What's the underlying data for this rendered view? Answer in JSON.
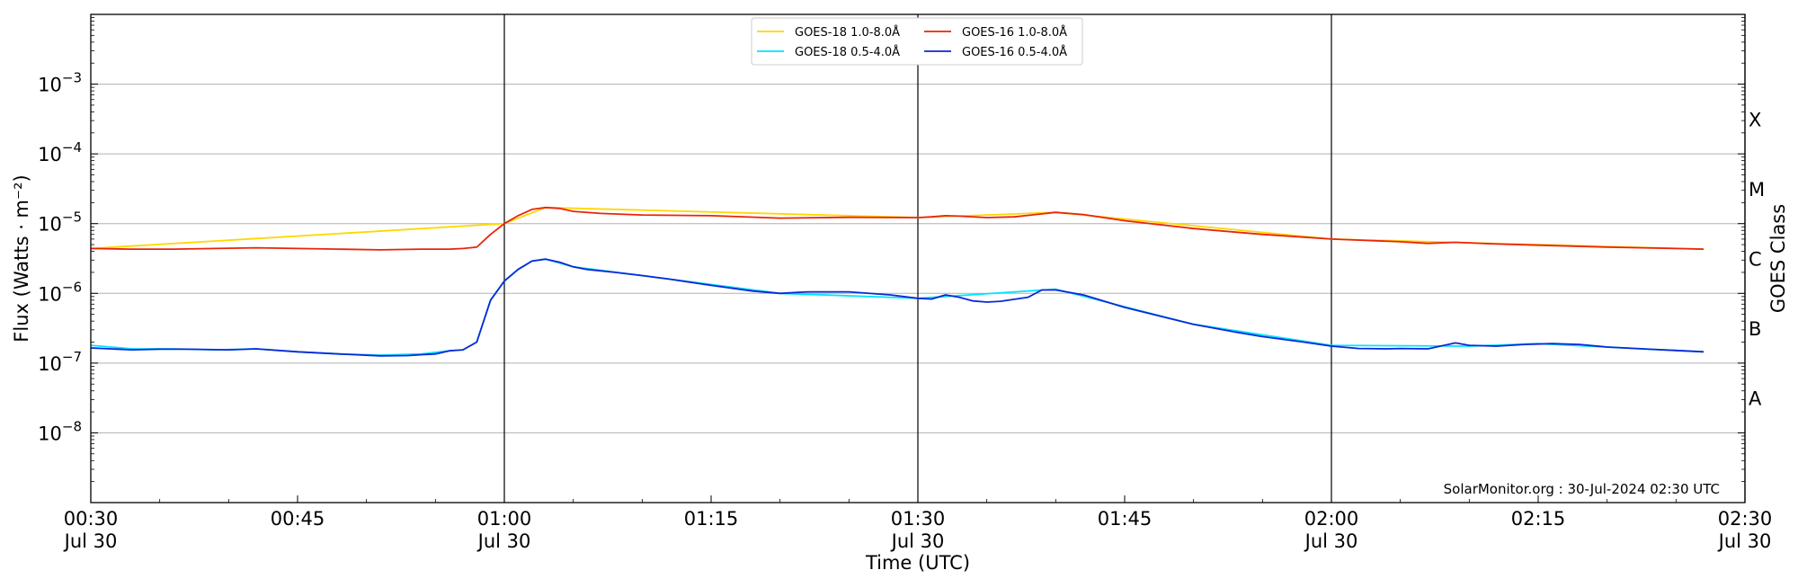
{
  "chart_data": {
    "type": "line",
    "xlabel": "Time (UTC)",
    "ylabel": "Flux (Watts · m⁻²)",
    "right_label": "GOES Class",
    "y_scale": "log",
    "ylim": [
      1e-09,
      0.01
    ],
    "xlim": [
      "2024-07-30 00:30",
      "2024-07-30 02:30"
    ],
    "grid": "horizontal at decades",
    "legend_position": "top-center",
    "credit": "SolarMonitor.org : 30-Jul-2024 02:30 UTC",
    "y_ticks": [
      {
        "value": 0.001,
        "base": "10",
        "exp": "−3"
      },
      {
        "value": 0.0001,
        "base": "10",
        "exp": "−4"
      },
      {
        "value": 1e-05,
        "base": "10",
        "exp": "−5"
      },
      {
        "value": 1e-06,
        "base": "10",
        "exp": "−6"
      },
      {
        "value": 1e-07,
        "base": "10",
        "exp": "−7"
      },
      {
        "value": 1e-08,
        "base": "10",
        "exp": "−8"
      }
    ],
    "x_ticks": [
      {
        "time": "00:30",
        "line1": "00:30",
        "line2": "Jul 30"
      },
      {
        "time": "00:45",
        "line1": "00:45",
        "line2": ""
      },
      {
        "time": "01:00",
        "line1": "01:00",
        "line2": "Jul 30"
      },
      {
        "time": "01:15",
        "line1": "01:15",
        "line2": ""
      },
      {
        "time": "01:30",
        "line1": "01:30",
        "line2": "Jul 30"
      },
      {
        "time": "01:45",
        "line1": "01:45",
        "line2": ""
      },
      {
        "time": "02:00",
        "line1": "02:00",
        "line2": "Jul 30"
      },
      {
        "time": "02:15",
        "line1": "02:15",
        "line2": ""
      },
      {
        "time": "02:30",
        "line1": "02:30",
        "line2": "Jul 30"
      }
    ],
    "vlines": [
      "01:00",
      "01:30",
      "02:00",
      "02:30"
    ],
    "goes_classes": [
      {
        "label": "X",
        "value": 0.000316
      },
      {
        "label": "M",
        "value": 3.16e-05
      },
      {
        "label": "C",
        "value": 3.16e-06
      },
      {
        "label": "B",
        "value": 3.16e-07
      },
      {
        "label": "A",
        "value": 3.16e-08
      }
    ],
    "series": [
      {
        "name": "GOES-18 1.0-8.0Å",
        "color": "#ffd700",
        "x": [
          "00:30",
          "01:00",
          "01:03",
          "01:30",
          "01:40",
          "02:00",
          "02:27"
        ],
        "y": [
          4.4e-06,
          1e-05,
          1.7e-05,
          1.22e-05,
          1.45e-05,
          6e-06,
          4.3e-06
        ]
      },
      {
        "name": "GOES-16 1.0-8.0Å",
        "color": "#e8250a",
        "x": [
          "00:30",
          "00:33",
          "00:36",
          "00:39",
          "00:42",
          "00:45",
          "00:48",
          "00:51",
          "00:54",
          "00:56",
          "00:57",
          "00:58",
          "00:59",
          "01:00",
          "01:01",
          "01:02",
          "01:03",
          "01:04",
          "01:05",
          "01:07",
          "01:10",
          "01:15",
          "01:20",
          "01:25",
          "01:30",
          "01:31",
          "01:32",
          "01:33",
          "01:35",
          "01:37",
          "01:39",
          "01:40",
          "01:42",
          "01:45",
          "01:50",
          "01:55",
          "02:00",
          "02:05",
          "02:07",
          "02:09",
          "02:12",
          "02:15",
          "02:20",
          "02:25",
          "02:27"
        ],
        "y": [
          4.4e-06,
          4.3e-06,
          4.3e-06,
          4.4e-06,
          4.5e-06,
          4.4e-06,
          4.3e-06,
          4.2e-06,
          4.3e-06,
          4.3e-06,
          4.4e-06,
          4.6e-06,
          7e-06,
          1e-05,
          1.3e-05,
          1.6e-05,
          1.7e-05,
          1.65e-05,
          1.5e-05,
          1.4e-05,
          1.33e-05,
          1.3e-05,
          1.2e-05,
          1.23e-05,
          1.22e-05,
          1.25e-05,
          1.3e-05,
          1.28e-05,
          1.22e-05,
          1.25e-05,
          1.38e-05,
          1.45e-05,
          1.35e-05,
          1.1e-05,
          8.5e-06,
          7e-06,
          6e-06,
          5.5e-06,
          5.2e-06,
          5.4e-06,
          5.1e-06,
          4.9e-06,
          4.6e-06,
          4.4e-06,
          4.3e-06
        ]
      },
      {
        "name": "GOES-18 0.5-4.0Å",
        "color": "#00e5ff",
        "x": [
          "00:30",
          "00:33",
          "00:36",
          "00:39",
          "00:42",
          "00:45",
          "00:48",
          "00:51",
          "00:54",
          "00:56",
          "00:57",
          "00:58",
          "00:59",
          "01:00",
          "01:01",
          "01:02",
          "01:03",
          "01:05",
          "01:10",
          "01:20",
          "01:30",
          "01:40",
          "01:50",
          "02:00",
          "02:10",
          "02:15",
          "02:27"
        ],
        "y": [
          1.8e-07,
          1.6e-07,
          1.6e-07,
          1.55e-07,
          1.6e-07,
          1.45e-07,
          1.35e-07,
          1.3e-07,
          1.35e-07,
          1.5e-07,
          1.55e-07,
          2e-07,
          8e-07,
          1.5e-06,
          2.2e-06,
          2.9e-06,
          3.1e-06,
          2.4e-06,
          1.8e-06,
          1e-06,
          8.5e-07,
          1.15e-06,
          3.6e-07,
          1.8e-07,
          1.75e-07,
          1.9e-07,
          1.45e-07
        ]
      },
      {
        "name": "GOES-16 0.5-4.0Å",
        "color": "#0a28d8",
        "x": [
          "00:30",
          "00:33",
          "00:35",
          "00:37",
          "00:40",
          "00:42",
          "00:45",
          "00:48",
          "00:51",
          "00:53",
          "00:54",
          "00:55",
          "00:56",
          "00:57",
          "00:58",
          "00:59",
          "01:00",
          "01:01",
          "01:02",
          "01:03",
          "01:04",
          "01:05",
          "01:06",
          "01:08",
          "01:10",
          "01:12",
          "01:15",
          "01:18",
          "01:20",
          "01:22",
          "01:25",
          "01:28",
          "01:30",
          "01:31",
          "01:32",
          "01:33",
          "01:34",
          "01:35",
          "01:36",
          "01:38",
          "01:39",
          "01:40",
          "01:42",
          "01:45",
          "01:48",
          "01:50",
          "01:53",
          "01:55",
          "01:58",
          "02:00",
          "02:02",
          "02:04",
          "02:05",
          "02:07",
          "02:09",
          "02:10",
          "02:12",
          "02:14",
          "02:16",
          "02:18",
          "02:20",
          "02:23",
          "02:25",
          "02:27"
        ],
        "y": [
          1.65e-07,
          1.55e-07,
          1.58e-07,
          1.58e-07,
          1.55e-07,
          1.6e-07,
          1.45e-07,
          1.35e-07,
          1.27e-07,
          1.28e-07,
          1.32e-07,
          1.35e-07,
          1.5e-07,
          1.55e-07,
          2e-07,
          8e-07,
          1.5e-06,
          2.2e-06,
          2.9e-06,
          3.1e-06,
          2.8e-06,
          2.4e-06,
          2.2e-06,
          2e-06,
          1.8e-06,
          1.6e-06,
          1.3e-06,
          1.08e-06,
          1e-06,
          1.05e-06,
          1.05e-06,
          9.5e-07,
          8.5e-07,
          8.3e-07,
          9.5e-07,
          8.8e-07,
          7.8e-07,
          7.5e-07,
          7.7e-07,
          8.8e-07,
          1.12e-06,
          1.12e-06,
          9.5e-07,
          6.3e-07,
          4.5e-07,
          3.6e-07,
          2.8e-07,
          2.4e-07,
          2e-07,
          1.75e-07,
          1.62e-07,
          1.6e-07,
          1.62e-07,
          1.6e-07,
          1.95e-07,
          1.8e-07,
          1.75e-07,
          1.85e-07,
          1.9e-07,
          1.85e-07,
          1.7e-07,
          1.58e-07,
          1.52e-07,
          1.45e-07
        ]
      }
    ]
  }
}
